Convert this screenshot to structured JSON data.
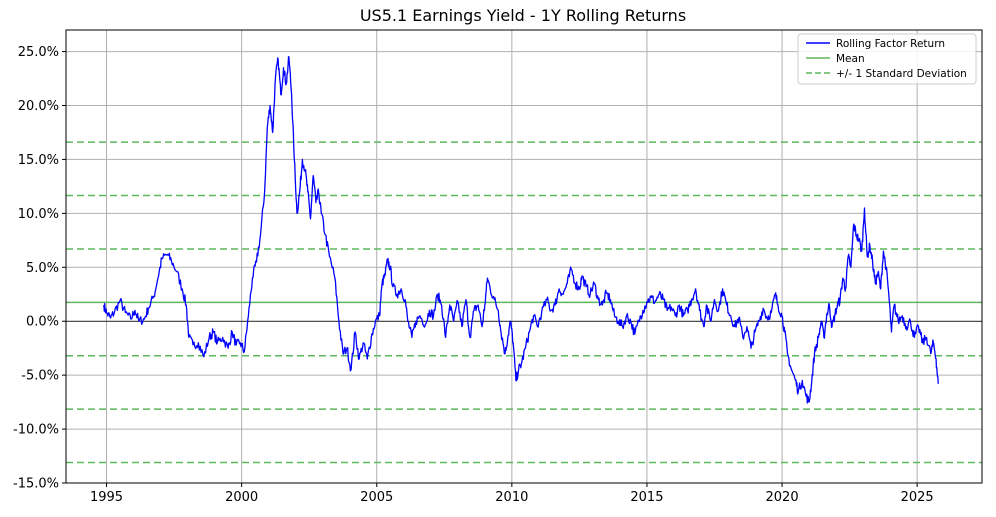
{
  "chart_data": {
    "type": "line",
    "title": "US5.1 Earnings Yield - 1Y Rolling Returns",
    "xlabel": "",
    "ylabel": "",
    "xlim": [
      1993.5,
      2027.4
    ],
    "ylim": [
      -15,
      27
    ],
    "x_ticks": [
      1995,
      2000,
      2005,
      2010,
      2015,
      2020,
      2025
    ],
    "x_tick_labels": [
      "1995",
      "2000",
      "2005",
      "2010",
      "2015",
      "2020",
      "2025"
    ],
    "y_ticks": [
      -15,
      -10,
      -5,
      0,
      5,
      10,
      15,
      20,
      25
    ],
    "y_tick_labels": [
      "-15.0%",
      "-10.0%",
      "-5.0%",
      "0.0%",
      "5.0%",
      "10.0%",
      "15.0%",
      "20.0%",
      "25.0%"
    ],
    "grid": true,
    "legend_position": "top-right",
    "legend": [
      {
        "label": "Rolling Factor Return",
        "style": "solid",
        "color": "#0000ff"
      },
      {
        "label": "Mean",
        "style": "solid",
        "color": "#5cb85c"
      },
      {
        "label": "+/- 1 Standard Deviation",
        "style": "dashed",
        "color": "#5cb85c"
      }
    ],
    "colors": {
      "series": "#0000ff",
      "mean": "#5cb85c",
      "std": "#5cb85c",
      "zero": "#000000",
      "grid": "#b0b0b0"
    },
    "mean": 1.75,
    "std_lines": [
      16.6,
      11.65,
      6.7,
      -3.2,
      -8.15,
      -13.1
    ],
    "series": [
      {
        "name": "Rolling Factor Return",
        "points": [
          [
            1994.9,
            1.5
          ],
          [
            1995.0,
            0.8
          ],
          [
            1995.15,
            0.3
          ],
          [
            1995.3,
            0.9
          ],
          [
            1995.5,
            1.9
          ],
          [
            1995.7,
            0.8
          ],
          [
            1995.9,
            0.2
          ],
          [
            1996.05,
            1.0
          ],
          [
            1996.2,
            0.0
          ],
          [
            1996.4,
            0.2
          ],
          [
            1996.55,
            1.2
          ],
          [
            1996.75,
            2.3
          ],
          [
            1996.9,
            4.0
          ],
          [
            1997.05,
            5.8
          ],
          [
            1997.25,
            6.2
          ],
          [
            1997.4,
            5.6
          ],
          [
            1997.6,
            4.6
          ],
          [
            1997.8,
            3.0
          ],
          [
            1997.95,
            1.5
          ],
          [
            1998.05,
            -1.5
          ],
          [
            1998.2,
            -2.2
          ],
          [
            1998.4,
            -2.0
          ],
          [
            1998.6,
            -3.3
          ],
          [
            1998.8,
            -1.5
          ],
          [
            1998.95,
            -1.0
          ],
          [
            1999.1,
            -2.0
          ],
          [
            1999.3,
            -1.5
          ],
          [
            1999.5,
            -2.5
          ],
          [
            1999.65,
            -1.0
          ],
          [
            1999.8,
            -2.2
          ],
          [
            1999.95,
            -2.0
          ],
          [
            2000.1,
            -2.8
          ],
          [
            2000.25,
            0.5
          ],
          [
            2000.4,
            4.0
          ],
          [
            2000.55,
            5.5
          ],
          [
            2000.7,
            8.0
          ],
          [
            2000.85,
            12.0
          ],
          [
            2000.95,
            18.0
          ],
          [
            2001.05,
            20.0
          ],
          [
            2001.15,
            17.5
          ],
          [
            2001.25,
            22.5
          ],
          [
            2001.35,
            24.3
          ],
          [
            2001.45,
            21.0
          ],
          [
            2001.55,
            23.5
          ],
          [
            2001.65,
            22.0
          ],
          [
            2001.75,
            24.5
          ],
          [
            2001.85,
            21.0
          ],
          [
            2001.95,
            15.0
          ],
          [
            2002.05,
            10.0
          ],
          [
            2002.15,
            12.0
          ],
          [
            2002.25,
            15.0
          ],
          [
            2002.35,
            14.0
          ],
          [
            2002.45,
            12.0
          ],
          [
            2002.55,
            9.5
          ],
          [
            2002.65,
            13.5
          ],
          [
            2002.75,
            11.0
          ],
          [
            2002.85,
            12.0
          ],
          [
            2002.95,
            10.0
          ],
          [
            2003.1,
            8.0
          ],
          [
            2003.25,
            6.0
          ],
          [
            2003.45,
            4.0
          ],
          [
            2003.6,
            0.0
          ],
          [
            2003.75,
            -3.0
          ],
          [
            2003.9,
            -2.5
          ],
          [
            2004.05,
            -4.5
          ],
          [
            2004.2,
            -1.0
          ],
          [
            2004.35,
            -3.5
          ],
          [
            2004.5,
            -2.0
          ],
          [
            2004.65,
            -3.5
          ],
          [
            2004.8,
            -1.5
          ],
          [
            2004.95,
            0.0
          ],
          [
            2005.1,
            0.5
          ],
          [
            2005.2,
            3.5
          ],
          [
            2005.3,
            4.2
          ],
          [
            2005.4,
            5.6
          ],
          [
            2005.5,
            5.0
          ],
          [
            2005.6,
            3.2
          ],
          [
            2005.75,
            2.5
          ],
          [
            2005.9,
            3.0
          ],
          [
            2006.05,
            2.0
          ],
          [
            2006.15,
            0.0
          ],
          [
            2006.3,
            -1.5
          ],
          [
            2006.45,
            0.0
          ],
          [
            2006.6,
            0.5
          ],
          [
            2006.8,
            -0.3
          ],
          [
            2006.95,
            1.0
          ],
          [
            2007.1,
            0.5
          ],
          [
            2007.25,
            2.5
          ],
          [
            2007.4,
            1.5
          ],
          [
            2007.55,
            -1.5
          ],
          [
            2007.7,
            1.5
          ],
          [
            2007.85,
            0.0
          ],
          [
            2008.0,
            1.8
          ],
          [
            2008.15,
            -0.5
          ],
          [
            2008.3,
            2.0
          ],
          [
            2008.45,
            -1.5
          ],
          [
            2008.6,
            1.0
          ],
          [
            2008.75,
            1.5
          ],
          [
            2008.9,
            -0.5
          ],
          [
            2009.0,
            1.5
          ],
          [
            2009.1,
            4.0
          ],
          [
            2009.2,
            3.0
          ],
          [
            2009.35,
            2.0
          ],
          [
            2009.5,
            1.0
          ],
          [
            2009.6,
            -1.0
          ],
          [
            2009.75,
            -3.0
          ],
          [
            2009.85,
            -1.5
          ],
          [
            2009.95,
            0.0
          ],
          [
            2010.05,
            -2.0
          ],
          [
            2010.15,
            -5.5
          ],
          [
            2010.25,
            -4.5
          ],
          [
            2010.35,
            -4.0
          ],
          [
            2010.5,
            -2.5
          ],
          [
            2010.65,
            -1.0
          ],
          [
            2010.8,
            0.5
          ],
          [
            2010.95,
            -0.5
          ],
          [
            2011.1,
            0.8
          ],
          [
            2011.3,
            2.0
          ],
          [
            2011.45,
            1.0
          ],
          [
            2011.6,
            1.5
          ],
          [
            2011.75,
            3.0
          ],
          [
            2011.9,
            2.5
          ],
          [
            2012.05,
            3.5
          ],
          [
            2012.2,
            4.8
          ],
          [
            2012.35,
            3.5
          ],
          [
            2012.5,
            3.0
          ],
          [
            2012.6,
            4.2
          ],
          [
            2012.75,
            3.2
          ],
          [
            2012.9,
            2.5
          ],
          [
            2013.05,
            3.5
          ],
          [
            2013.2,
            2.0
          ],
          [
            2013.35,
            1.5
          ],
          [
            2013.5,
            2.6
          ],
          [
            2013.65,
            2.0
          ],
          [
            2013.8,
            0.5
          ],
          [
            2013.95,
            0.0
          ],
          [
            2014.1,
            -0.5
          ],
          [
            2014.25,
            0.5
          ],
          [
            2014.4,
            0.0
          ],
          [
            2014.55,
            -1.2
          ],
          [
            2014.7,
            0.0
          ],
          [
            2014.85,
            1.0
          ],
          [
            2015.0,
            1.8
          ],
          [
            2015.15,
            2.2
          ],
          [
            2015.3,
            1.8
          ],
          [
            2015.45,
            2.5
          ],
          [
            2015.6,
            2.0
          ],
          [
            2015.75,
            1.0
          ],
          [
            2015.9,
            1.3
          ],
          [
            2016.05,
            0.5
          ],
          [
            2016.2,
            1.5
          ],
          [
            2016.35,
            0.5
          ],
          [
            2016.5,
            1.0
          ],
          [
            2016.65,
            2.0
          ],
          [
            2016.8,
            3.0
          ],
          [
            2016.95,
            1.0
          ],
          [
            2017.1,
            -0.5
          ],
          [
            2017.2,
            1.5
          ],
          [
            2017.35,
            0.0
          ],
          [
            2017.5,
            2.0
          ],
          [
            2017.65,
            1.0
          ],
          [
            2017.8,
            3.0
          ],
          [
            2017.95,
            1.5
          ],
          [
            2018.1,
            0.5
          ],
          [
            2018.25,
            -0.5
          ],
          [
            2018.4,
            0.3
          ],
          [
            2018.55,
            -1.5
          ],
          [
            2018.7,
            -0.5
          ],
          [
            2018.85,
            -2.5
          ],
          [
            2019.0,
            -1.0
          ],
          [
            2019.15,
            0.0
          ],
          [
            2019.3,
            1.2
          ],
          [
            2019.45,
            0.3
          ],
          [
            2019.6,
            0.8
          ],
          [
            2019.75,
            2.5
          ],
          [
            2019.85,
            1.5
          ],
          [
            2020.0,
            0.5
          ],
          [
            2020.1,
            -1.0
          ],
          [
            2020.2,
            -3.0
          ],
          [
            2020.35,
            -4.5
          ],
          [
            2020.5,
            -5.5
          ],
          [
            2020.6,
            -6.5
          ],
          [
            2020.75,
            -5.5
          ],
          [
            2020.9,
            -7.0
          ],
          [
            2021.0,
            -7.5
          ],
          [
            2021.1,
            -5.5
          ],
          [
            2021.2,
            -3.0
          ],
          [
            2021.35,
            -1.5
          ],
          [
            2021.45,
            0.0
          ],
          [
            2021.55,
            -1.5
          ],
          [
            2021.65,
            0.5
          ],
          [
            2021.75,
            1.5
          ],
          [
            2021.85,
            -0.5
          ],
          [
            2021.95,
            0.5
          ],
          [
            2022.05,
            1.5
          ],
          [
            2022.15,
            2.0
          ],
          [
            2022.25,
            4.0
          ],
          [
            2022.35,
            3.0
          ],
          [
            2022.45,
            6.0
          ],
          [
            2022.55,
            5.0
          ],
          [
            2022.65,
            9.0
          ],
          [
            2022.75,
            8.0
          ],
          [
            2022.85,
            7.5
          ],
          [
            2022.95,
            6.5
          ],
          [
            2023.05,
            10.5
          ],
          [
            2023.15,
            6.0
          ],
          [
            2023.25,
            7.0
          ],
          [
            2023.35,
            5.5
          ],
          [
            2023.45,
            3.5
          ],
          [
            2023.55,
            4.5
          ],
          [
            2023.65,
            3.0
          ],
          [
            2023.75,
            6.5
          ],
          [
            2023.85,
            5.0
          ],
          [
            2023.95,
            2.5
          ],
          [
            2024.05,
            -1.0
          ],
          [
            2024.15,
            1.5
          ],
          [
            2024.3,
            0.0
          ],
          [
            2024.45,
            0.5
          ],
          [
            2024.6,
            -0.5
          ],
          [
            2024.75,
            0.0
          ],
          [
            2024.9,
            -1.5
          ],
          [
            2025.05,
            -0.5
          ],
          [
            2025.2,
            -2.0
          ],
          [
            2025.35,
            -1.5
          ],
          [
            2025.5,
            -3.0
          ],
          [
            2025.6,
            -2.0
          ],
          [
            2025.7,
            -3.5
          ],
          [
            2025.78,
            -5.8
          ]
        ]
      }
    ]
  }
}
